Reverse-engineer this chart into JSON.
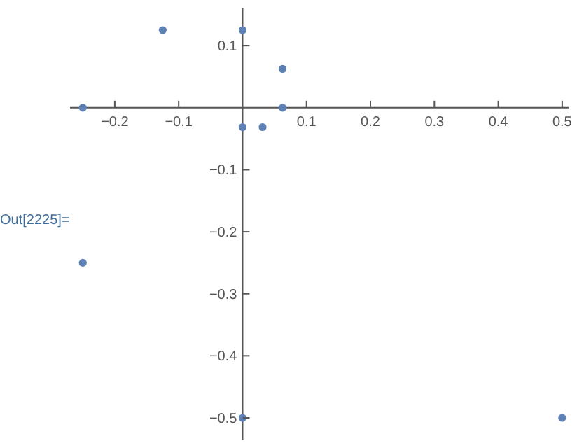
{
  "chart_data": {
    "type": "scatter",
    "marker": "circle",
    "x": [
      -0.25,
      -0.125,
      0,
      0.0625,
      0.0625,
      0,
      0.03125,
      -0.25,
      0,
      0.5
    ],
    "series": [
      {
        "color": "#5e81b5",
        "values": [
          0,
          0.125,
          0.125,
          0.0625,
          0,
          -0.03125,
          -0.03125,
          -0.25,
          -0.5,
          -0.5
        ]
      }
    ],
    "xlim": [
      -0.27,
      0.51
    ],
    "ylim": [
      -0.535,
      0.16
    ],
    "xticks": [
      -0.2,
      -0.1,
      0.1,
      0.2,
      0.3,
      0.4,
      0.5
    ],
    "yticks": [
      0.1,
      -0.1,
      -0.2,
      -0.3,
      -0.4,
      -0.5
    ],
    "annotations": [
      "Out[2225]="
    ]
  }
}
